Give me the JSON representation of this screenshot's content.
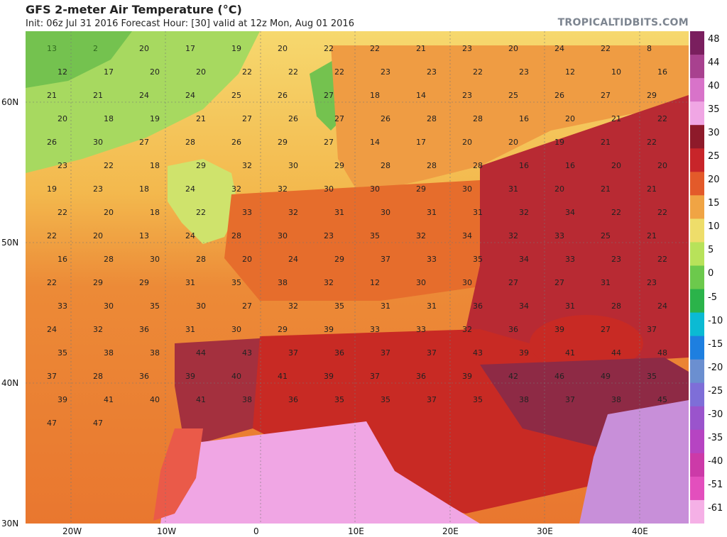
{
  "header": {
    "title": "GFS 2-meter Air Temperature (°C)",
    "subtitle": "Init: 06z Jul 31 2016   Forecast Hour: [30]   valid at 12z Mon, Aug 01 2016",
    "brand": "TROPICALTIDBITS.COM"
  },
  "axes": {
    "x_ticks": [
      "20W",
      "10W",
      "0",
      "10E",
      "20E",
      "30E",
      "40E"
    ],
    "y_ticks": [
      "60N",
      "50N",
      "40N",
      "30N"
    ]
  },
  "colorbar": {
    "labels": [
      "48",
      "44",
      "40",
      "35",
      "30",
      "25",
      "20",
      "15",
      "10",
      "5",
      "0",
      "-5",
      "-10",
      "-15",
      "-20",
      "-25",
      "-30",
      "-35",
      "-40",
      "-51",
      "-61"
    ],
    "colors": [
      "#7a1f5e",
      "#a8418f",
      "#d873c9",
      "#f0a6e4",
      "#8e1a2a",
      "#c8252a",
      "#e35a2a",
      "#f0a444",
      "#eedd6a",
      "#b8e25a",
      "#6cc94c",
      "#2bb34a",
      "#0bbad3",
      "#1e7fe0",
      "#6b8fd0",
      "#7e6ed8",
      "#9a54cc",
      "#b644c2",
      "#cc3aa8",
      "#e34fbd",
      "#f5b0e6"
    ]
  },
  "map_labels": [
    {
      "t": "13",
      "c": "#2f6a1e"
    },
    {
      "t": "2",
      "c": "#2f6a1e"
    },
    {
      "t": "20",
      "c": "#222"
    },
    {
      "t": "17",
      "c": "#222"
    },
    {
      "t": "19",
      "c": "#222"
    },
    {
      "t": "20",
      "c": "#222"
    },
    {
      "t": "22",
      "c": "#222"
    },
    {
      "t": "22",
      "c": "#222"
    },
    {
      "t": "21",
      "c": "#222"
    },
    {
      "t": "23",
      "c": "#222"
    },
    {
      "t": "20",
      "c": "#222"
    },
    {
      "t": "24",
      "c": "#222"
    },
    {
      "t": "22",
      "c": "#222"
    },
    {
      "t": "8",
      "c": "#222"
    },
    {
      "t": "12",
      "c": "#222"
    },
    {
      "t": "17",
      "c": "#222"
    },
    {
      "t": "20",
      "c": "#222"
    },
    {
      "t": "20",
      "c": "#222"
    },
    {
      "t": "22",
      "c": "#222"
    },
    {
      "t": "22",
      "c": "#222"
    },
    {
      "t": "22",
      "c": "#222"
    },
    {
      "t": "23",
      "c": "#222"
    },
    {
      "t": "23",
      "c": "#222"
    },
    {
      "t": "22",
      "c": "#222"
    },
    {
      "t": "23",
      "c": "#222"
    },
    {
      "t": "12",
      "c": "#222"
    },
    {
      "t": "10",
      "c": "#222"
    },
    {
      "t": "16",
      "c": "#222"
    },
    {
      "t": "21",
      "c": "#222"
    },
    {
      "t": "21",
      "c": "#222"
    },
    {
      "t": "24",
      "c": "#222"
    },
    {
      "t": "24",
      "c": "#222"
    },
    {
      "t": "25",
      "c": "#222"
    },
    {
      "t": "26",
      "c": "#222"
    },
    {
      "t": "27",
      "c": "#222"
    },
    {
      "t": "18",
      "c": "#222"
    },
    {
      "t": "14",
      "c": "#222"
    },
    {
      "t": "23",
      "c": "#222"
    },
    {
      "t": "25",
      "c": "#222"
    },
    {
      "t": "26",
      "c": "#222"
    },
    {
      "t": "27",
      "c": "#222"
    },
    {
      "t": "29",
      "c": "#222"
    },
    {
      "t": "20",
      "c": "#222"
    },
    {
      "t": "18",
      "c": "#222"
    },
    {
      "t": "19",
      "c": "#222"
    },
    {
      "t": "21",
      "c": "#222"
    },
    {
      "t": "27",
      "c": "#222"
    },
    {
      "t": "26",
      "c": "#222"
    },
    {
      "t": "27",
      "c": "#222"
    },
    {
      "t": "26",
      "c": "#222"
    },
    {
      "t": "28",
      "c": "#222"
    },
    {
      "t": "28",
      "c": "#222"
    },
    {
      "t": "16",
      "c": "#222"
    },
    {
      "t": "20",
      "c": "#222"
    },
    {
      "t": "21",
      "c": "#222"
    },
    {
      "t": "22",
      "c": "#222"
    },
    {
      "t": "26",
      "c": "#222"
    },
    {
      "t": "30",
      "c": "#222"
    },
    {
      "t": "27",
      "c": "#222"
    },
    {
      "t": "28",
      "c": "#222"
    },
    {
      "t": "26",
      "c": "#222"
    },
    {
      "t": "29",
      "c": "#222"
    },
    {
      "t": "27",
      "c": "#222"
    },
    {
      "t": "14",
      "c": "#222"
    },
    {
      "t": "17",
      "c": "#222"
    },
    {
      "t": "20",
      "c": "#222"
    },
    {
      "t": "20",
      "c": "#222"
    },
    {
      "t": "19",
      "c": "#222"
    },
    {
      "t": "21",
      "c": "#222"
    },
    {
      "t": "22",
      "c": "#222"
    },
    {
      "t": "23",
      "c": "#222"
    },
    {
      "t": "22",
      "c": "#222"
    },
    {
      "t": "18",
      "c": "#222"
    },
    {
      "t": "29",
      "c": "#222"
    },
    {
      "t": "32",
      "c": "#222"
    },
    {
      "t": "30",
      "c": "#222"
    },
    {
      "t": "29",
      "c": "#222"
    },
    {
      "t": "28",
      "c": "#222"
    },
    {
      "t": "28",
      "c": "#222"
    },
    {
      "t": "28",
      "c": "#222"
    },
    {
      "t": "16",
      "c": "#222"
    },
    {
      "t": "16",
      "c": "#222"
    },
    {
      "t": "20",
      "c": "#222"
    },
    {
      "t": "20",
      "c": "#222"
    },
    {
      "t": "19",
      "c": "#222"
    },
    {
      "t": "23",
      "c": "#222"
    },
    {
      "t": "18",
      "c": "#222"
    },
    {
      "t": "24",
      "c": "#222"
    },
    {
      "t": "32",
      "c": "#222"
    },
    {
      "t": "32",
      "c": "#222"
    },
    {
      "t": "30",
      "c": "#222"
    },
    {
      "t": "30",
      "c": "#222"
    },
    {
      "t": "29",
      "c": "#222"
    },
    {
      "t": "30",
      "c": "#222"
    },
    {
      "t": "31",
      "c": "#222"
    },
    {
      "t": "20",
      "c": "#222"
    },
    {
      "t": "21",
      "c": "#222"
    },
    {
      "t": "21",
      "c": "#222"
    },
    {
      "t": "22",
      "c": "#222"
    },
    {
      "t": "20",
      "c": "#222"
    },
    {
      "t": "18",
      "c": "#222"
    },
    {
      "t": "22",
      "c": "#222"
    },
    {
      "t": "33",
      "c": "#222"
    },
    {
      "t": "32",
      "c": "#222"
    },
    {
      "t": "31",
      "c": "#222"
    },
    {
      "t": "30",
      "c": "#222"
    },
    {
      "t": "31",
      "c": "#222"
    },
    {
      "t": "31",
      "c": "#222"
    },
    {
      "t": "32",
      "c": "#222"
    },
    {
      "t": "34",
      "c": "#222"
    },
    {
      "t": "22",
      "c": "#222"
    },
    {
      "t": "22",
      "c": "#222"
    },
    {
      "t": "22",
      "c": "#222"
    },
    {
      "t": "20",
      "c": "#222"
    },
    {
      "t": "13",
      "c": "#222"
    },
    {
      "t": "24",
      "c": "#222"
    },
    {
      "t": "28",
      "c": "#222"
    },
    {
      "t": "30",
      "c": "#222"
    },
    {
      "t": "23",
      "c": "#222"
    },
    {
      "t": "35",
      "c": "#222"
    },
    {
      "t": "32",
      "c": "#222"
    },
    {
      "t": "34",
      "c": "#222"
    },
    {
      "t": "32",
      "c": "#222"
    },
    {
      "t": "33",
      "c": "#222"
    },
    {
      "t": "25",
      "c": "#222"
    },
    {
      "t": "21",
      "c": "#222"
    },
    {
      "t": "16",
      "c": "#222"
    },
    {
      "t": "28",
      "c": "#222"
    },
    {
      "t": "30",
      "c": "#222"
    },
    {
      "t": "28",
      "c": "#222"
    },
    {
      "t": "20",
      "c": "#222"
    },
    {
      "t": "24",
      "c": "#222"
    },
    {
      "t": "29",
      "c": "#222"
    },
    {
      "t": "37",
      "c": "#222"
    },
    {
      "t": "33",
      "c": "#222"
    },
    {
      "t": "35",
      "c": "#222"
    },
    {
      "t": "34",
      "c": "#222"
    },
    {
      "t": "33",
      "c": "#222"
    },
    {
      "t": "23",
      "c": "#222"
    },
    {
      "t": "22",
      "c": "#222"
    },
    {
      "t": "22",
      "c": "#222"
    },
    {
      "t": "29",
      "c": "#222"
    },
    {
      "t": "29",
      "c": "#222"
    },
    {
      "t": "31",
      "c": "#222"
    },
    {
      "t": "35",
      "c": "#222"
    },
    {
      "t": "38",
      "c": "#222"
    },
    {
      "t": "32",
      "c": "#222"
    },
    {
      "t": "12",
      "c": "#222"
    },
    {
      "t": "30",
      "c": "#222"
    },
    {
      "t": "30",
      "c": "#222"
    },
    {
      "t": "27",
      "c": "#222"
    },
    {
      "t": "27",
      "c": "#222"
    },
    {
      "t": "31",
      "c": "#222"
    },
    {
      "t": "23",
      "c": "#222"
    },
    {
      "t": "33",
      "c": "#222"
    },
    {
      "t": "30",
      "c": "#222"
    },
    {
      "t": "35",
      "c": "#222"
    },
    {
      "t": "30",
      "c": "#222"
    },
    {
      "t": "27",
      "c": "#222"
    },
    {
      "t": "32",
      "c": "#222"
    },
    {
      "t": "35",
      "c": "#222"
    },
    {
      "t": "31",
      "c": "#222"
    },
    {
      "t": "31",
      "c": "#222"
    },
    {
      "t": "36",
      "c": "#222"
    },
    {
      "t": "34",
      "c": "#222"
    },
    {
      "t": "31",
      "c": "#222"
    },
    {
      "t": "28",
      "c": "#222"
    },
    {
      "t": "24",
      "c": "#222"
    },
    {
      "t": "24",
      "c": "#222"
    },
    {
      "t": "32",
      "c": "#222"
    },
    {
      "t": "36",
      "c": "#222"
    },
    {
      "t": "31",
      "c": "#222"
    },
    {
      "t": "30",
      "c": "#222"
    },
    {
      "t": "29",
      "c": "#222"
    },
    {
      "t": "39",
      "c": "#222"
    },
    {
      "t": "33",
      "c": "#222"
    },
    {
      "t": "33",
      "c": "#222"
    },
    {
      "t": "32",
      "c": "#222"
    },
    {
      "t": "36",
      "c": "#222"
    },
    {
      "t": "39",
      "c": "#222"
    },
    {
      "t": "27",
      "c": "#222"
    },
    {
      "t": "37",
      "c": "#222"
    },
    {
      "t": "35",
      "c": "#222"
    },
    {
      "t": "38",
      "c": "#222"
    },
    {
      "t": "38",
      "c": "#222"
    },
    {
      "t": "44",
      "c": "#222"
    },
    {
      "t": "43",
      "c": "#222"
    },
    {
      "t": "37",
      "c": "#222"
    },
    {
      "t": "36",
      "c": "#222"
    },
    {
      "t": "37",
      "c": "#222"
    },
    {
      "t": "37",
      "c": "#222"
    },
    {
      "t": "43",
      "c": "#222"
    },
    {
      "t": "39",
      "c": "#222"
    },
    {
      "t": "41",
      "c": "#222"
    },
    {
      "t": "44",
      "c": "#222"
    },
    {
      "t": "48",
      "c": "#222"
    },
    {
      "t": "37",
      "c": "#222"
    },
    {
      "t": "28",
      "c": "#222"
    },
    {
      "t": "36",
      "c": "#222"
    },
    {
      "t": "39",
      "c": "#222"
    },
    {
      "t": "40",
      "c": "#222"
    },
    {
      "t": "41",
      "c": "#222"
    },
    {
      "t": "39",
      "c": "#222"
    },
    {
      "t": "37",
      "c": "#222"
    },
    {
      "t": "36",
      "c": "#222"
    },
    {
      "t": "39",
      "c": "#222"
    },
    {
      "t": "42",
      "c": "#222"
    },
    {
      "t": "46",
      "c": "#222"
    },
    {
      "t": "49",
      "c": "#222"
    },
    {
      "t": "35",
      "c": "#222"
    },
    {
      "t": "39",
      "c": "#222"
    },
    {
      "t": "41",
      "c": "#222"
    },
    {
      "t": "40",
      "c": "#222"
    },
    {
      "t": "41",
      "c": "#222"
    },
    {
      "t": "38",
      "c": "#222"
    },
    {
      "t": "36",
      "c": "#222"
    },
    {
      "t": "35",
      "c": "#222"
    },
    {
      "t": "35",
      "c": "#222"
    },
    {
      "t": "37",
      "c": "#222"
    },
    {
      "t": "35",
      "c": "#222"
    },
    {
      "t": "38",
      "c": "#222"
    },
    {
      "t": "37",
      "c": "#222"
    },
    {
      "t": "38",
      "c": "#222"
    },
    {
      "t": "45",
      "c": "#222"
    },
    {
      "t": "47",
      "c": "#222"
    },
    {
      "t": "47",
      "c": "#222"
    }
  ]
}
